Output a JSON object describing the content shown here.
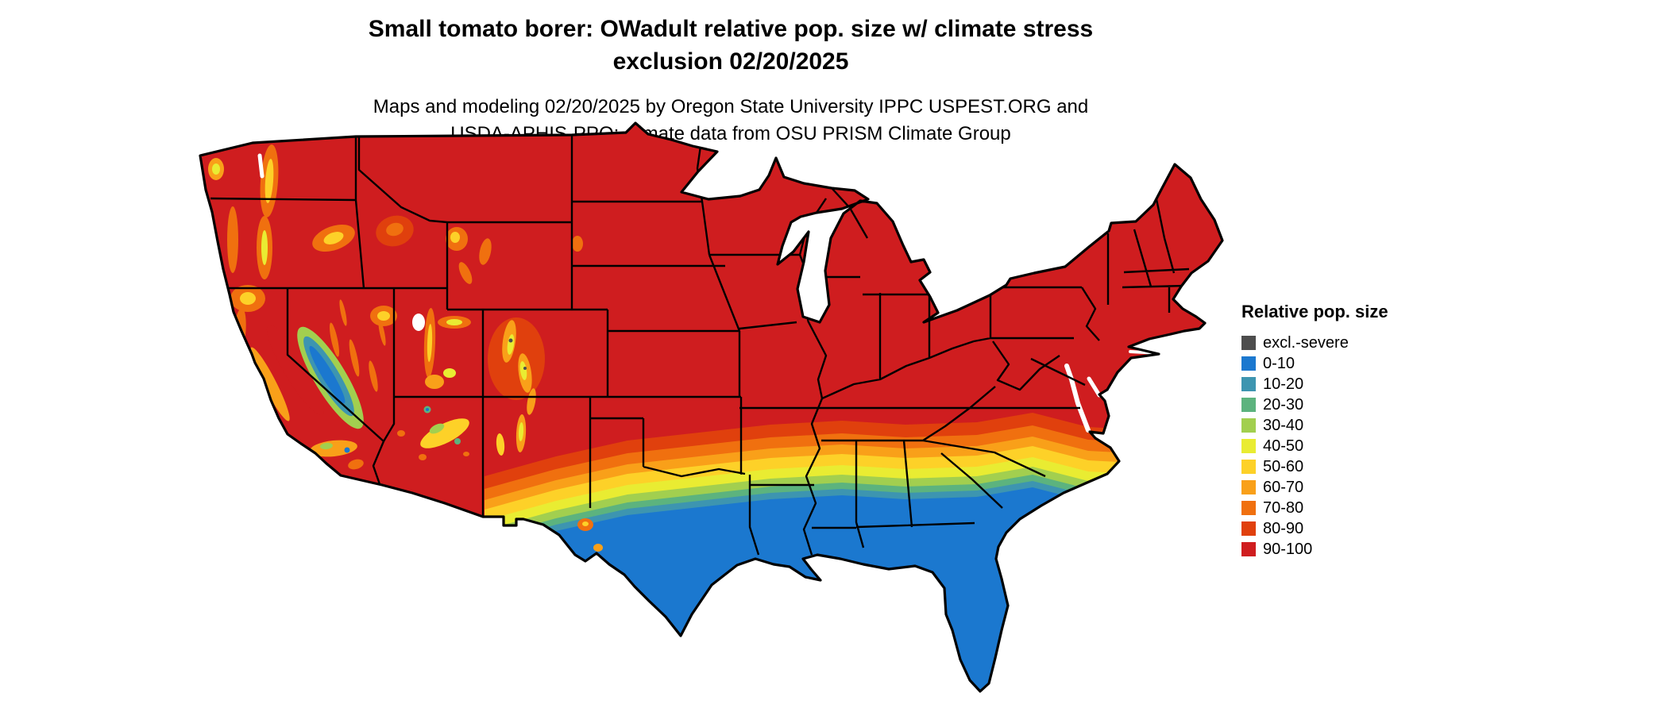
{
  "page": {
    "background": "#ffffff"
  },
  "title": {
    "line1": "Small tomato borer: OWadult relative pop. size w/ climate stress",
    "line2": "exclusion 02/20/2025"
  },
  "subtitle": {
    "line1": "Maps and modeling 02/20/2025 by Oregon State University IPPC USPEST.ORG and",
    "line2": "USDA-APHIS-PPQ; climate data from OSU PRISM Climate Group"
  },
  "legend": {
    "title": "Relative pop. size",
    "items": [
      {
        "label": "excl.-severe",
        "color": "#4d4d4d"
      },
      {
        "label": "0-10",
        "color": "#1b78cf"
      },
      {
        "label": "10-20",
        "color": "#3d95b0"
      },
      {
        "label": "20-30",
        "color": "#5cb37e"
      },
      {
        "label": "30-40",
        "color": "#a2cf4f"
      },
      {
        "label": "40-50",
        "color": "#e9ec32"
      },
      {
        "label": "50-60",
        "color": "#fdd128"
      },
      {
        "label": "60-70",
        "color": "#f9a019"
      },
      {
        "label": "70-80",
        "color": "#f0700f"
      },
      {
        "label": "80-90",
        "color": "#e0400d"
      },
      {
        "label": "90-100",
        "color": "#cf1d1f"
      }
    ]
  },
  "map": {
    "area": "Contiguous United States"
  }
}
